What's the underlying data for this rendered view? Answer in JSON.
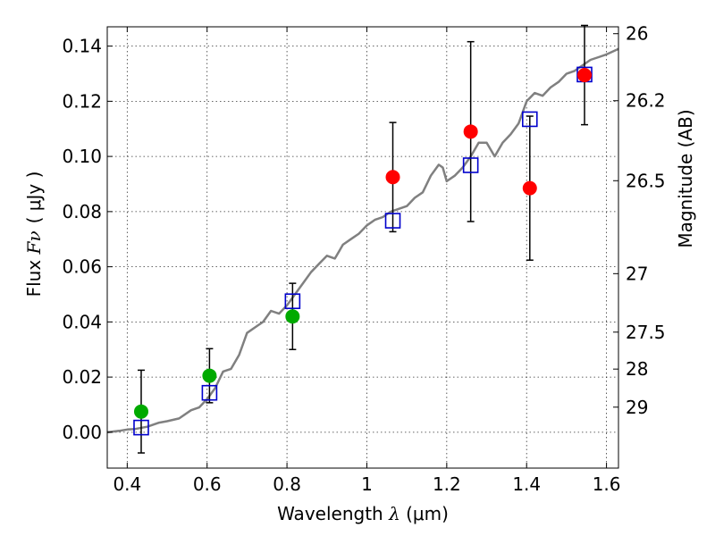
{
  "chart_data": {
    "type": "scatter",
    "xlabel_prefix": "Wavelength ",
    "xlabel_symbol": "λ",
    "xlabel_unit": " (μm)",
    "ylabel_prefix": "Flux ",
    "ylabel_symbol": "Fν",
    "ylabel_unit": "( μJy )",
    "y2label": "Magnitude (AB)",
    "xlim": [
      0.35,
      1.63
    ],
    "ylim": [
      -0.013,
      0.147
    ],
    "x_ticks": [
      0.4,
      0.6,
      0.8,
      1.0,
      1.2,
      1.4,
      1.6
    ],
    "x_tick_labels": [
      "0.4",
      "0.6",
      "0.8",
      "1",
      "1.2",
      "1.4",
      "1.6"
    ],
    "y_ticks": [
      0.0,
      0.02,
      0.04,
      0.06,
      0.08,
      0.1,
      0.12,
      0.14
    ],
    "y_tick_labels": [
      "0.00",
      "0.02",
      "0.04",
      "0.06",
      "0.08",
      "0.10",
      "0.12",
      "0.14"
    ],
    "mag_ticks": [
      {
        "label": "26",
        "flux": 0.1445
      },
      {
        "label": "26.2",
        "flux": 0.1202
      },
      {
        "label": "26.5",
        "flux": 0.0912
      },
      {
        "label": "27",
        "flux": 0.0575
      },
      {
        "label": "27.5",
        "flux": 0.0363
      },
      {
        "label": "28",
        "flux": 0.0229
      },
      {
        "label": "29",
        "flux": 0.0091
      }
    ],
    "grid": true,
    "series": [
      {
        "name": "observed-green",
        "color": "#00aa00",
        "points": [
          {
            "x": 0.435,
            "y": 0.0075,
            "err": 0.015
          },
          {
            "x": 0.606,
            "y": 0.0205,
            "err": 0.0098
          },
          {
            "x": 0.814,
            "y": 0.042,
            "err": 0.012
          }
        ]
      },
      {
        "name": "observed-red",
        "color": "#ff0000",
        "points": [
          {
            "x": 1.065,
            "y": 0.0925,
            "err": 0.0198
          },
          {
            "x": 1.26,
            "y": 0.109,
            "err": 0.0326
          },
          {
            "x": 1.408,
            "y": 0.0885,
            "err": 0.0261
          },
          {
            "x": 1.545,
            "y": 0.1295,
            "err": 0.018
          }
        ]
      },
      {
        "name": "model-squares",
        "color": "#0000cc",
        "points": [
          {
            "x": 0.435,
            "y": 0.0017
          },
          {
            "x": 0.606,
            "y": 0.0143
          },
          {
            "x": 0.814,
            "y": 0.0475
          },
          {
            "x": 1.065,
            "y": 0.0767
          },
          {
            "x": 1.26,
            "y": 0.0968
          },
          {
            "x": 1.408,
            "y": 0.1135
          },
          {
            "x": 1.545,
            "y": 0.1297
          }
        ]
      }
    ],
    "model_spectrum": {
      "color": "#808080",
      "x": [
        0.35,
        0.38,
        0.4,
        0.42,
        0.45,
        0.48,
        0.5,
        0.53,
        0.56,
        0.58,
        0.6,
        0.62,
        0.64,
        0.66,
        0.68,
        0.7,
        0.72,
        0.74,
        0.76,
        0.78,
        0.8,
        0.82,
        0.84,
        0.86,
        0.88,
        0.9,
        0.92,
        0.94,
        0.96,
        0.98,
        1.0,
        1.02,
        1.04,
        1.06,
        1.08,
        1.1,
        1.12,
        1.14,
        1.16,
        1.18,
        1.19,
        1.2,
        1.22,
        1.24,
        1.26,
        1.28,
        1.3,
        1.32,
        1.34,
        1.36,
        1.38,
        1.4,
        1.42,
        1.44,
        1.46,
        1.48,
        1.5,
        1.52,
        1.54,
        1.56,
        1.58,
        1.6,
        1.63
      ],
      "y": [
        0.0,
        0.0005,
        0.001,
        0.0012,
        0.002,
        0.0035,
        0.004,
        0.005,
        0.008,
        0.009,
        0.012,
        0.016,
        0.022,
        0.023,
        0.028,
        0.036,
        0.038,
        0.04,
        0.044,
        0.043,
        0.046,
        0.05,
        0.054,
        0.058,
        0.061,
        0.064,
        0.063,
        0.068,
        0.07,
        0.072,
        0.075,
        0.077,
        0.078,
        0.08,
        0.081,
        0.082,
        0.085,
        0.087,
        0.093,
        0.097,
        0.096,
        0.091,
        0.093,
        0.096,
        0.1,
        0.105,
        0.105,
        0.1,
        0.105,
        0.108,
        0.112,
        0.12,
        0.123,
        0.122,
        0.125,
        0.127,
        0.13,
        0.131,
        0.133,
        0.135,
        0.136,
        0.137,
        0.139
      ]
    }
  }
}
